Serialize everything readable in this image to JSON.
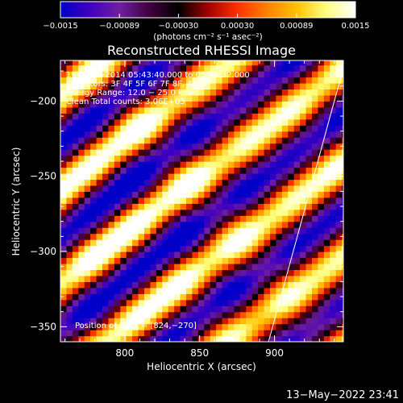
{
  "chart_data": {
    "type": "heatmap",
    "title": "Reconstructed RHESSI Image",
    "xlabel": "Heliocentric X (arcsec)",
    "ylabel": "Heliocentric Y (arcsec)",
    "xlim": [
      757,
      946
    ],
    "ylim": [
      -360,
      -173
    ],
    "xticks": [
      800,
      850,
      900
    ],
    "yticks": [
      -200,
      -250,
      -300,
      -350
    ],
    "colorbar": {
      "label": "(photons cm⁻² s⁻¹ asec⁻²)",
      "range": [
        -0.0015,
        0.0015
      ],
      "ticks": [
        "−0.0015",
        "−0.00089",
        "−0.00030",
        "0.00030",
        "0.00089",
        "0.0015"
      ],
      "colormap": [
        "#0000c8",
        "#4000c0",
        "#7020a0",
        "#400040",
        "#000000",
        "#a00000",
        "#ff3000",
        "#ff8000",
        "#ffc000",
        "#ffff80",
        "#ffffff"
      ]
    },
    "annotations": [
      "19−Mar−2014 05:43:40.000 to 05:45:32.000",
      "Detectors: 3F 4F 5F 6F 7F 8F, Att 0",
      "Energy Range: 12.0 − 25.0 keV",
      "Clean    Total counts: 3.06E+03"
    ],
    "peak_label": "Position of Peak = [824,−270]",
    "peak": [
      824,
      -270
    ],
    "pattern": {
      "description_units": "arcsec",
      "stripe_slope": 0.75,
      "stripe_period": 62,
      "limb_points": [
        [
          896,
          -360
        ],
        [
          946,
          -178
        ]
      ]
    }
  },
  "footer": {
    "date": "13−May−2022 23:41"
  }
}
